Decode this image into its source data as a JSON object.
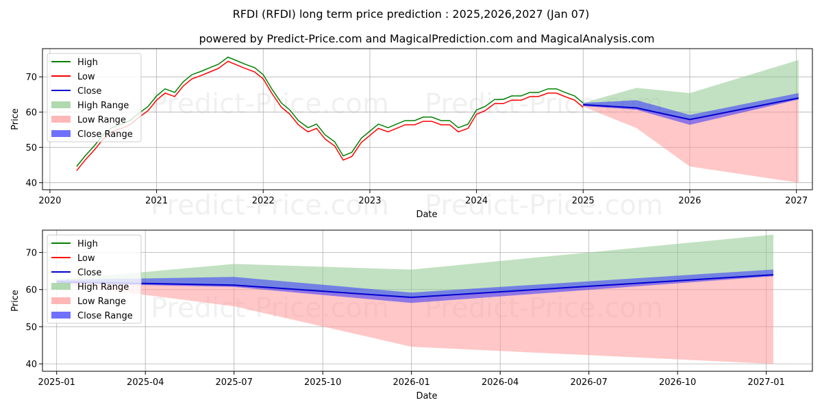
{
  "title": "RFDI (RFDI) long term price prediction : 2025,2026,2027 (Jan 07)",
  "subtitle": "powered by Predict-Price.com and MagicalPrediction.com and MagicalAnalysis.com",
  "watermark": "Predict-Price.com",
  "colors": {
    "high": "#008000",
    "low": "#ff0000",
    "close": "#0000cc",
    "high_range": "#8fc98f",
    "low_range": "#ff9999",
    "close_range": "#3333ff"
  },
  "chart_data": [
    {
      "type": "line",
      "name": "history-and-forecast",
      "xlabel": "Date",
      "ylabel": "Price",
      "xlim": [
        2019.93,
        2027.15
      ],
      "ylim": [
        38,
        78
      ],
      "x_ticks": [
        2020,
        2021,
        2022,
        2023,
        2024,
        2025,
        2026,
        2027
      ],
      "x_tick_labels": [
        "2020",
        "2021",
        "2022",
        "2023",
        "2024",
        "2025",
        "2026",
        "2027"
      ],
      "y_ticks": [
        40,
        50,
        60,
        70
      ],
      "y_tick_labels": [
        "40",
        "50",
        "60",
        "70"
      ],
      "legend": [
        "High",
        "Low",
        "Close",
        "High Range",
        "Low Range",
        "Close Range"
      ],
      "legend_position": "top-left",
      "history": {
        "x": [
          2020.25,
          2020.33,
          2020.42,
          2020.5,
          2020.58,
          2020.67,
          2020.75,
          2020.83,
          2020.92,
          2021.0,
          2021.08,
          2021.17,
          2021.25,
          2021.33,
          2021.42,
          2021.5,
          2021.58,
          2021.67,
          2021.75,
          2021.83,
          2021.92,
          2022.0,
          2022.08,
          2022.17,
          2022.25,
          2022.33,
          2022.42,
          2022.5,
          2022.58,
          2022.67,
          2022.75,
          2022.83,
          2022.92,
          2023.0,
          2023.08,
          2023.17,
          2023.25,
          2023.33,
          2023.42,
          2023.5,
          2023.58,
          2023.67,
          2023.75,
          2023.83,
          2023.92,
          2024.0,
          2024.08,
          2024.17,
          2024.25,
          2024.33,
          2024.42,
          2024.5,
          2024.58,
          2024.67,
          2024.75,
          2024.83,
          2024.92,
          2025.0
        ],
        "values": [
          44,
          47,
          50,
          53,
          55,
          56,
          57,
          59,
          61,
          64,
          66,
          65,
          68,
          70,
          71,
          72,
          73,
          75,
          74,
          73,
          72,
          70,
          66,
          62,
          60,
          57,
          55,
          56,
          53,
          51,
          47,
          48,
          52,
          54,
          56,
          55,
          56,
          57,
          57,
          58,
          58,
          57,
          57,
          55,
          56,
          60,
          61,
          63,
          63,
          64,
          64,
          65,
          65,
          66,
          66,
          65,
          64,
          62
        ]
      },
      "forecast": {
        "x": [
          2025.0,
          2025.5,
          2026.0,
          2027.02
        ],
        "high": [
          62.6,
          66.9,
          65.4,
          74.8
        ],
        "low": [
          61.6,
          55.5,
          44.6,
          40.0
        ],
        "close": [
          62.1,
          61.2,
          57.9,
          64.0
        ],
        "close_upper": [
          62.6,
          63.4,
          59.2,
          65.4
        ],
        "close_lower": [
          61.7,
          60.7,
          56.4,
          63.6
        ]
      }
    },
    {
      "type": "line",
      "name": "forecast-detail",
      "xlabel": "Date",
      "ylabel": "Price",
      "xlim": [
        2024.96,
        2027.13
      ],
      "ylim": [
        38,
        76
      ],
      "x_ticks": [
        2025.0,
        2025.25,
        2025.5,
        2025.75,
        2026.0,
        2026.25,
        2026.5,
        2026.75,
        2027.0
      ],
      "x_tick_labels": [
        "2025-01",
        "2025-04",
        "2025-07",
        "2025-10",
        "2026-01",
        "2026-04",
        "2026-07",
        "2026-10",
        "2027-01"
      ],
      "y_ticks": [
        40,
        50,
        60,
        70
      ],
      "y_tick_labels": [
        "40",
        "50",
        "60",
        "70"
      ],
      "legend": [
        "High",
        "Low",
        "Close",
        "High Range",
        "Low Range",
        "Close Range"
      ],
      "legend_position": "top-left",
      "forecast": {
        "x": [
          2025.0,
          2025.5,
          2026.0,
          2027.02
        ],
        "high": [
          62.6,
          66.9,
          65.4,
          74.8
        ],
        "low": [
          61.6,
          55.5,
          44.6,
          40.0
        ],
        "close": [
          62.1,
          61.2,
          57.9,
          64.0
        ],
        "close_upper": [
          62.6,
          63.4,
          59.2,
          65.4
        ],
        "close_lower": [
          61.7,
          60.7,
          56.4,
          63.6
        ]
      }
    }
  ]
}
